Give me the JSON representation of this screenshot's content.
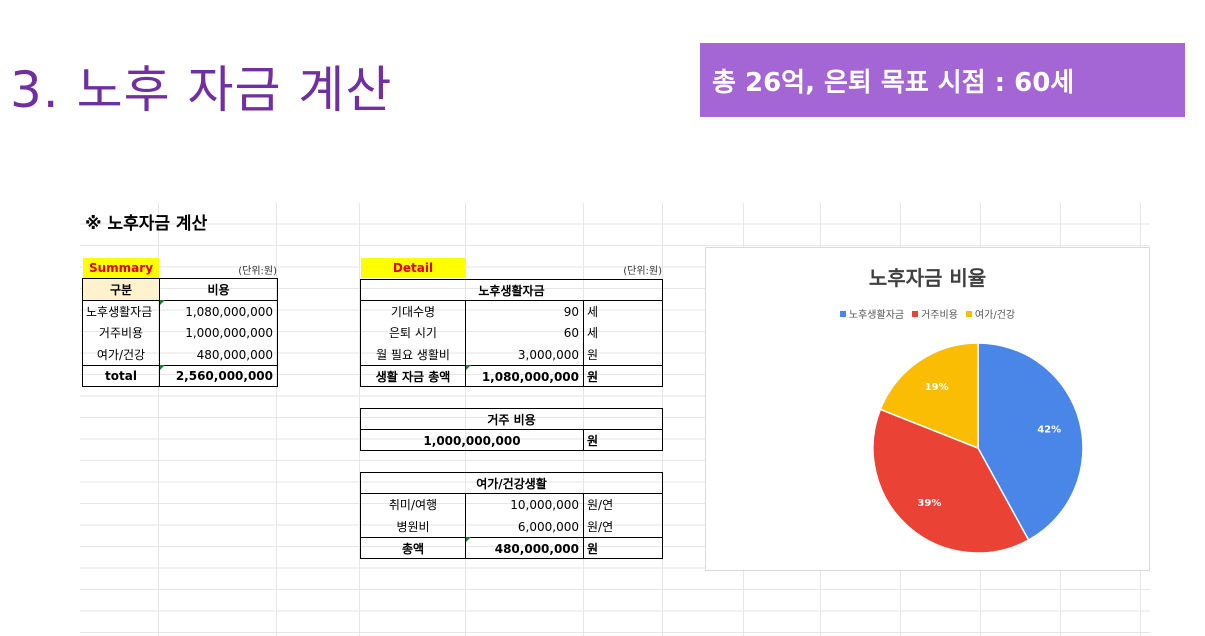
{
  "slide": {
    "title": "3. 노후 자금 계산",
    "badge": "총 26억, 은퇴 목표 시점 : 60세"
  },
  "sheet": {
    "title": "※ 노후자금 계산",
    "summary": {
      "label": "Summary",
      "unit": "(단위:원)",
      "headers": [
        "구분",
        "비용"
      ],
      "rows": [
        {
          "name": "노후생활자금",
          "value": "1,080,000,000"
        },
        {
          "name": "거주비용",
          "value": "1,000,000,000"
        },
        {
          "name": "여가/건강",
          "value": "480,000,000"
        }
      ],
      "total": {
        "name": "total",
        "value": "2,560,000,000"
      }
    },
    "detail": {
      "label": "Detail",
      "unit": "(단위:원)",
      "living": {
        "header": "노후생활자금",
        "rows": [
          {
            "name": "기대수명",
            "value": "90",
            "unit": "세"
          },
          {
            "name": "은퇴 시기",
            "value": "60",
            "unit": "세"
          },
          {
            "name": "월 필요 생활비",
            "value": "3,000,000",
            "unit": "원"
          }
        ],
        "total": {
          "name": "생활 자금 총액",
          "value": "1,080,000,000",
          "unit": "원"
        }
      },
      "housing": {
        "header": "거주 비용",
        "value": "1,000,000,000",
        "unit": "원"
      },
      "leisure": {
        "header": "여가/건강생활",
        "rows": [
          {
            "name": "취미/여행",
            "value": "10,000,000",
            "unit": "원/연"
          },
          {
            "name": "병원비",
            "value": "6,000,000",
            "unit": "원/연"
          }
        ],
        "total": {
          "name": "총액",
          "value": "480,000,000",
          "unit": "원"
        }
      }
    }
  },
  "chart_data": {
    "type": "pie",
    "title": "노후자금 비율",
    "legend_position": "top",
    "categories": [
      "노후생활자금",
      "거주비용",
      "여가/건강"
    ],
    "values": [
      42,
      39,
      19
    ],
    "labels": [
      "42%",
      "39%",
      "19%"
    ],
    "colors": [
      "#4a86e8",
      "#ea4335",
      "#fbbc04"
    ]
  }
}
